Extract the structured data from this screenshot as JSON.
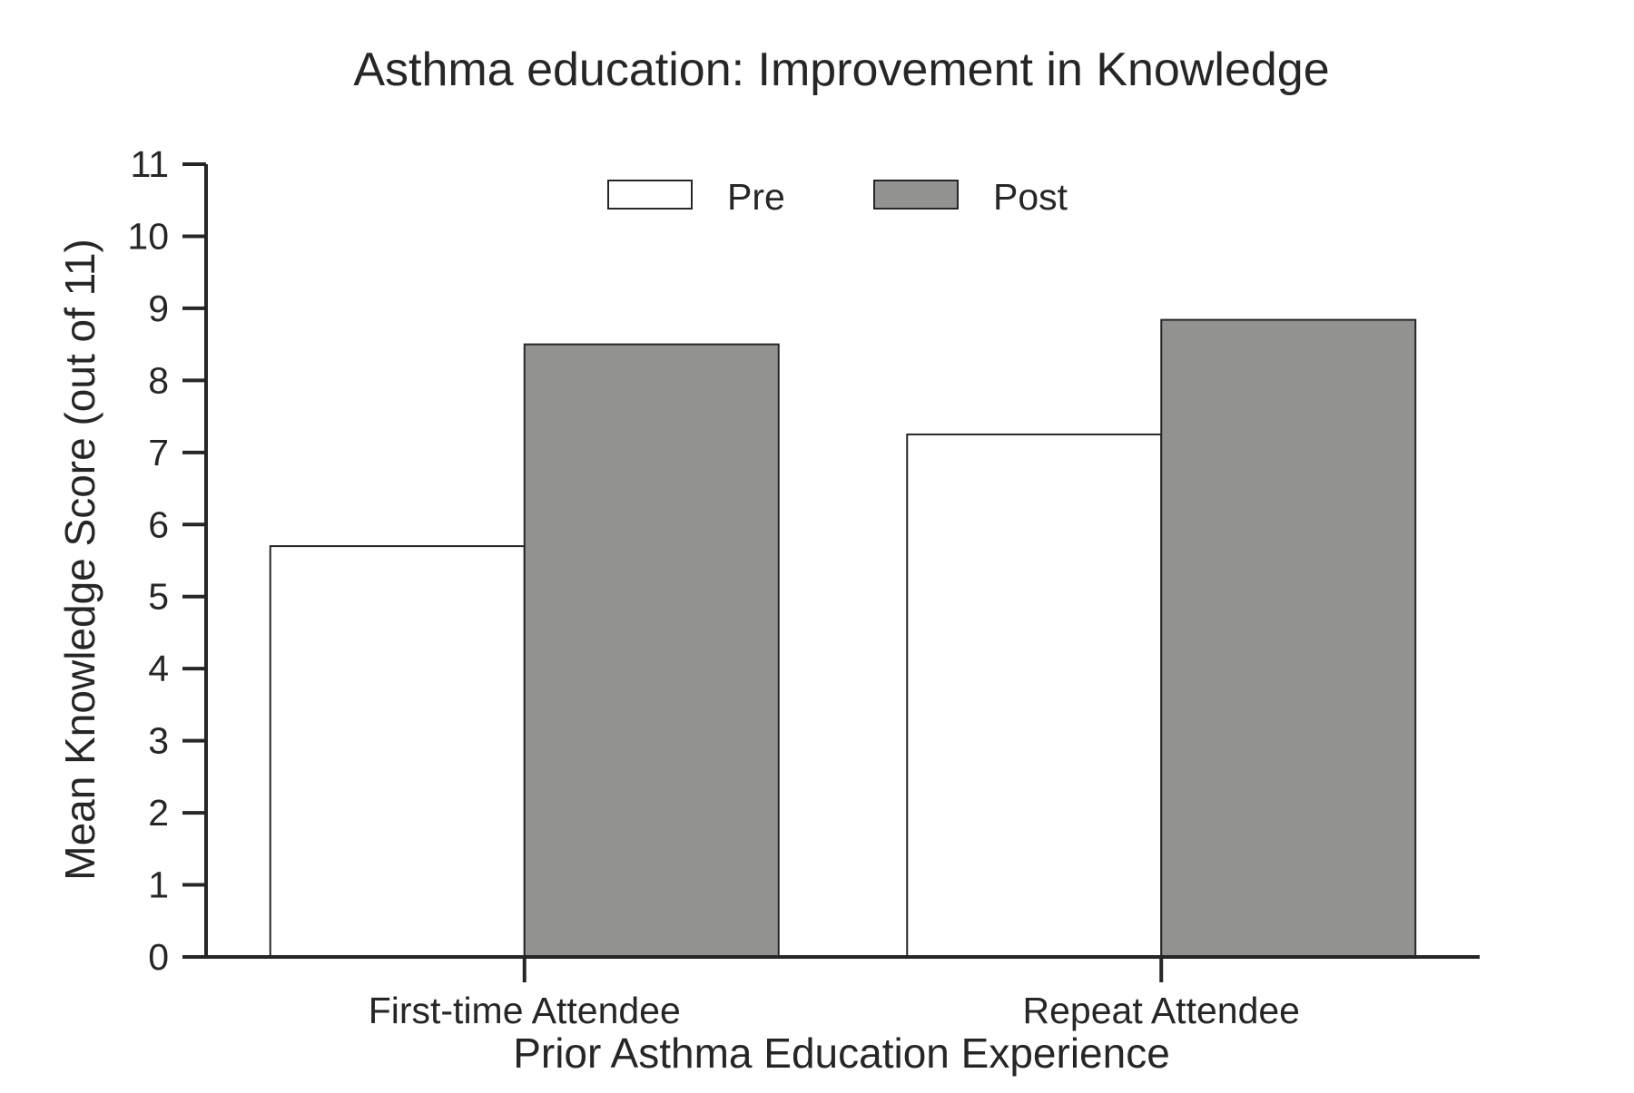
{
  "chart_data": {
    "type": "bar",
    "title": "Asthma education: Improvement in Knowledge",
    "xlabel": "Prior Asthma Education Experience",
    "ylabel": "Mean Knowledge Score (out of 11)",
    "categories": [
      "First-time Attendee",
      "Repeat Attendee"
    ],
    "series": [
      {
        "name": "Pre",
        "color": "#ffffff",
        "values": [
          5.7,
          7.25
        ]
      },
      {
        "name": "Post",
        "color": "#929391",
        "values": [
          8.5,
          8.84
        ]
      }
    ],
    "ylim": [
      0,
      11
    ],
    "yticks": [
      "0",
      "1",
      "2",
      "3",
      "4",
      "5",
      "6",
      "7",
      "8",
      "9",
      "10",
      "11"
    ],
    "grid": false,
    "legend": "top-center"
  }
}
